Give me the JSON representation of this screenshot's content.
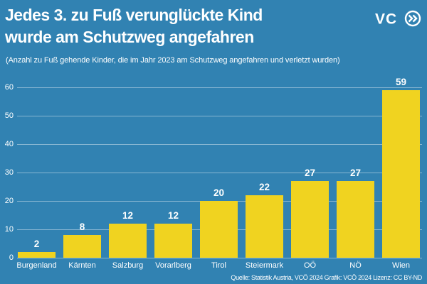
{
  "header": {
    "title_line1": "Jedes 3. zu Fuß verunglückte Kind",
    "title_line2": "wurde am Schutzweg angefahren",
    "subtitle": "(Anzahl zu Fuß gehende Kinder, die im Jahr 2023 am Schutzweg angefahren und verletzt wurden)",
    "logo_text": "VC"
  },
  "chart_data": {
    "type": "bar",
    "title": "Jedes 3. zu Fuß verunglückte Kind wurde am Schutzweg angefahren",
    "subtitle": "(Anzahl zu Fuß gehende Kinder, die im Jahr 2023 am Schutzweg angefahren und verletzt wurden)",
    "categories": [
      "Burgenland",
      "Kärnten",
      "Salzburg",
      "Vorarlberg",
      "Tirol",
      "Steiermark",
      "OÖ",
      "NÖ",
      "Wien"
    ],
    "values": [
      2,
      8,
      12,
      12,
      20,
      22,
      27,
      27,
      59
    ],
    "xlabel": "",
    "ylabel": "",
    "ylim": [
      0,
      60
    ],
    "yticks": [
      0,
      10,
      20,
      30,
      40,
      50,
      60
    ],
    "grid": true,
    "legend": false,
    "value_labels_shown": true,
    "bar_color": "#f0d320",
    "background_color": "#3182b2",
    "gridline_color": "rgba(255,255,255,0.42)",
    "text_color": "#ffffff"
  },
  "footer": {
    "source": "Quelle: Statistik Austria, VCÖ 2024 Grafik: VCÖ 2024 Lizenz: CC BY-ND"
  }
}
